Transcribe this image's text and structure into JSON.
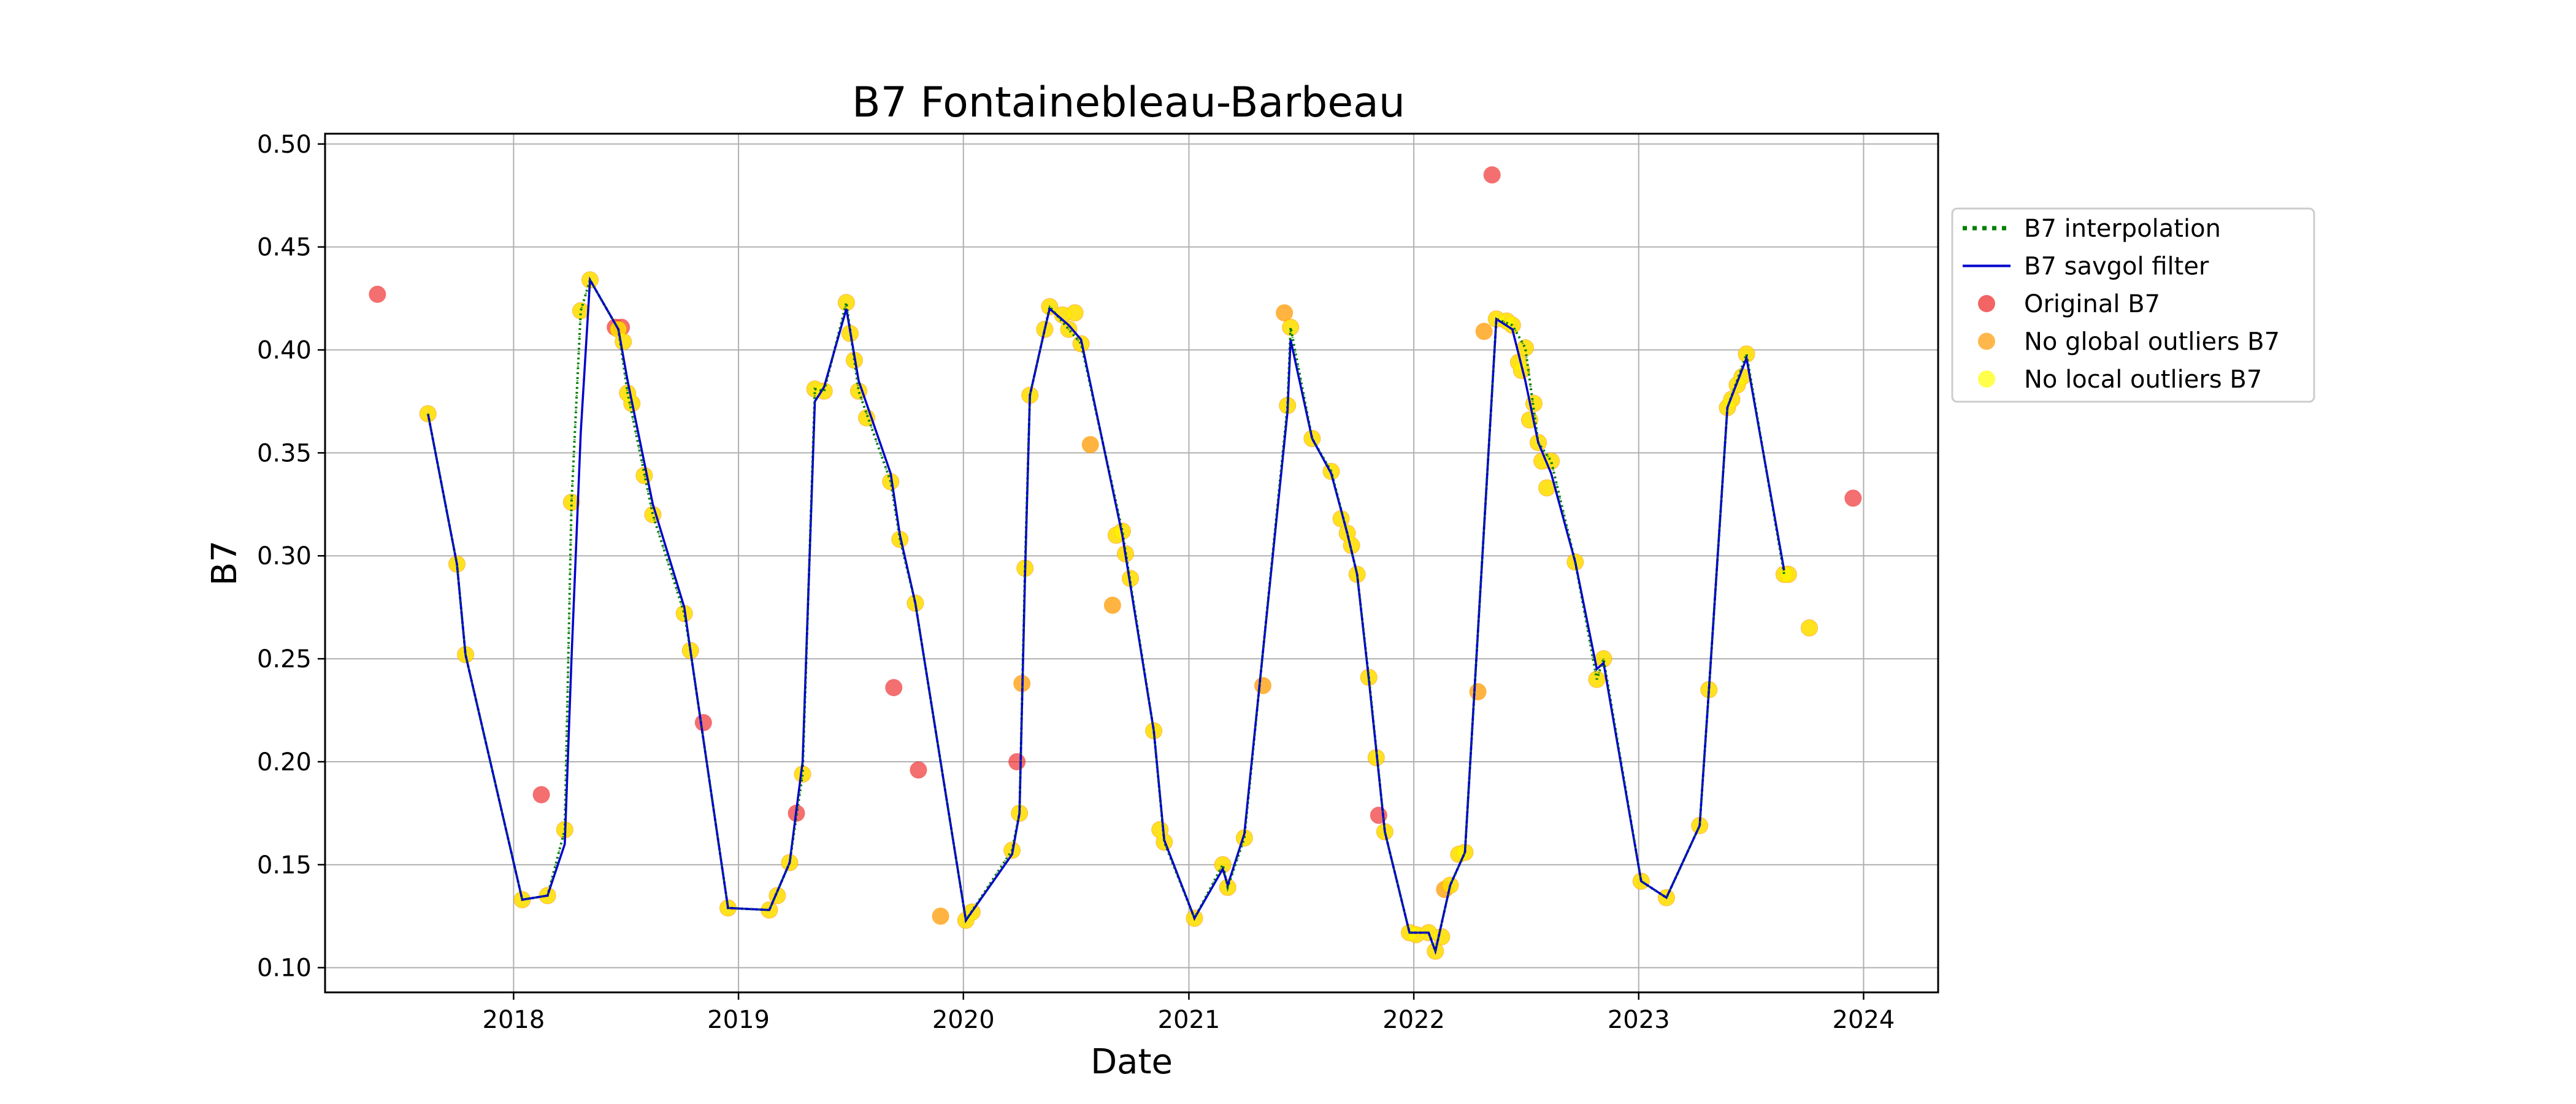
{
  "chart_data": {
    "type": "scatter",
    "title": "B7 Fontainebleau-Barbeau",
    "xlabel": "Date",
    "ylabel": "B7",
    "x_axis_type": "date",
    "xlim": [
      "2017-03-01",
      "2024-05-01"
    ],
    "ylim": [
      0.088,
      0.505
    ],
    "x_ticks": [
      "2018",
      "2019",
      "2020",
      "2021",
      "2022",
      "2023",
      "2024"
    ],
    "y_ticks": [
      "0.10",
      "0.15",
      "0.20",
      "0.25",
      "0.30",
      "0.35",
      "0.40",
      "0.45",
      "0.50"
    ],
    "grid": true,
    "legend_position": "outside-right-top",
    "colors": {
      "interpolation": "#008000",
      "savgol": "#0000cc",
      "original": "#ee2222",
      "no_global": "#ff9900",
      "no_local": "#ffff00"
    },
    "legend": [
      {
        "label": "B7 interpolation",
        "kind": "dotted-line",
        "color": "#008000"
      },
      {
        "label": "B7 savgol filter",
        "kind": "line",
        "color": "#0000cc"
      },
      {
        "label": "Original B7",
        "kind": "marker",
        "color": "#ee2222"
      },
      {
        "label": "No global outliers B7",
        "kind": "marker",
        "color": "#ff9900"
      },
      {
        "label": "No local outliers B7",
        "kind": "marker",
        "color": "#ffff00"
      }
    ],
    "series": [
      {
        "name": "No local outliers B7",
        "points": [
          [
            "2017-08-15",
            0.369
          ],
          [
            "2017-10-01",
            0.296
          ],
          [
            "2017-10-15",
            0.252
          ],
          [
            "2018-01-15",
            0.133
          ],
          [
            "2018-02-25",
            0.135
          ],
          [
            "2018-03-25",
            0.167
          ],
          [
            "2018-04-05",
            0.326
          ],
          [
            "2018-04-20",
            0.419
          ],
          [
            "2018-05-05",
            0.434
          ],
          [
            "2018-06-20",
            0.41
          ],
          [
            "2018-06-28",
            0.404
          ],
          [
            "2018-07-05",
            0.379
          ],
          [
            "2018-07-12",
            0.374
          ],
          [
            "2018-08-01",
            0.339
          ],
          [
            "2018-08-15",
            0.32
          ],
          [
            "2018-10-05",
            0.272
          ],
          [
            "2018-10-15",
            0.254
          ],
          [
            "2018-12-15",
            0.129
          ],
          [
            "2019-02-20",
            0.128
          ],
          [
            "2019-03-05",
            0.135
          ],
          [
            "2019-03-25",
            0.151
          ],
          [
            "2019-04-15",
            0.194
          ],
          [
            "2019-05-05",
            0.381
          ],
          [
            "2019-05-20",
            0.38
          ],
          [
            "2019-06-25",
            0.423
          ],
          [
            "2019-07-01",
            0.408
          ],
          [
            "2019-07-08",
            0.395
          ],
          [
            "2019-07-15",
            0.38
          ],
          [
            "2019-07-28",
            0.367
          ],
          [
            "2019-09-05",
            0.336
          ],
          [
            "2019-09-20",
            0.308
          ],
          [
            "2019-10-15",
            0.277
          ],
          [
            "2020-01-05",
            0.123
          ],
          [
            "2020-01-15",
            0.127
          ],
          [
            "2020-03-20",
            0.157
          ],
          [
            "2020-04-01",
            0.175
          ],
          [
            "2020-04-10",
            0.294
          ],
          [
            "2020-04-18",
            0.378
          ],
          [
            "2020-05-12",
            0.41
          ],
          [
            "2020-05-20",
            0.421
          ],
          [
            "2020-06-10",
            0.417
          ],
          [
            "2020-06-20",
            0.41
          ],
          [
            "2020-06-30",
            0.418
          ],
          [
            "2020-07-10",
            0.403
          ],
          [
            "2020-09-05",
            0.31
          ],
          [
            "2020-09-15",
            0.312
          ],
          [
            "2020-09-20",
            0.301
          ],
          [
            "2020-09-28",
            0.289
          ],
          [
            "2020-11-05",
            0.215
          ],
          [
            "2020-11-15",
            0.167
          ],
          [
            "2020-11-22",
            0.161
          ],
          [
            "2021-01-10",
            0.124
          ],
          [
            "2021-02-25",
            0.15
          ],
          [
            "2021-03-05",
            0.139
          ],
          [
            "2021-04-01",
            0.163
          ],
          [
            "2021-06-10",
            0.373
          ],
          [
            "2021-06-15",
            0.411
          ],
          [
            "2021-07-20",
            0.357
          ],
          [
            "2021-08-20",
            0.341
          ],
          [
            "2021-09-05",
            0.318
          ],
          [
            "2021-09-15",
            0.311
          ],
          [
            "2021-09-22",
            0.305
          ],
          [
            "2021-10-01",
            0.291
          ],
          [
            "2021-10-20",
            0.241
          ],
          [
            "2021-11-01",
            0.202
          ],
          [
            "2021-11-15",
            0.166
          ],
          [
            "2021-12-25",
            0.117
          ],
          [
            "2022-01-05",
            0.116
          ],
          [
            "2022-01-25",
            0.117
          ],
          [
            "2022-02-05",
            0.108
          ],
          [
            "2022-02-15",
            0.115
          ],
          [
            "2022-03-01",
            0.14
          ],
          [
            "2022-03-15",
            0.155
          ],
          [
            "2022-03-25",
            0.156
          ],
          [
            "2022-05-15",
            0.415
          ],
          [
            "2022-06-01",
            0.414
          ],
          [
            "2022-06-10",
            0.412
          ],
          [
            "2022-06-20",
            0.394
          ],
          [
            "2022-06-25",
            0.39
          ],
          [
            "2022-07-01",
            0.401
          ],
          [
            "2022-07-08",
            0.366
          ],
          [
            "2022-07-15",
            0.374
          ],
          [
            "2022-07-22",
            0.355
          ],
          [
            "2022-07-28",
            0.346
          ],
          [
            "2022-08-05",
            0.333
          ],
          [
            "2022-08-12",
            0.346
          ],
          [
            "2022-09-20",
            0.297
          ],
          [
            "2022-10-25",
            0.24
          ],
          [
            "2022-11-05",
            0.25
          ],
          [
            "2023-01-05",
            0.142
          ],
          [
            "2023-02-15",
            0.134
          ],
          [
            "2023-04-10",
            0.169
          ],
          [
            "2023-04-25",
            0.235
          ],
          [
            "2023-05-25",
            0.372
          ],
          [
            "2023-06-01",
            0.376
          ],
          [
            "2023-06-10",
            0.383
          ],
          [
            "2023-06-18",
            0.387
          ],
          [
            "2023-06-25",
            0.398
          ],
          [
            "2023-08-25",
            0.291
          ],
          [
            "2023-09-01",
            0.291
          ],
          [
            "2023-10-05",
            0.265
          ]
        ]
      },
      {
        "name": "No global outliers B7",
        "points": [
          [
            "2019-11-25",
            0.125
          ],
          [
            "2020-04-05",
            0.238
          ],
          [
            "2020-07-25",
            0.354
          ],
          [
            "2020-08-30",
            0.276
          ],
          [
            "2021-05-01",
            0.237
          ],
          [
            "2021-06-05",
            0.418
          ],
          [
            "2022-04-15",
            0.234
          ],
          [
            "2022-04-25",
            0.409
          ],
          [
            "2022-02-20",
            0.138
          ]
        ]
      },
      {
        "name": "Original B7",
        "points": [
          [
            "2017-05-25",
            0.427
          ],
          [
            "2018-02-15",
            0.184
          ],
          [
            "2018-06-15",
            0.411
          ],
          [
            "2018-06-25",
            0.411
          ],
          [
            "2018-11-05",
            0.219
          ],
          [
            "2019-04-05",
            0.175
          ],
          [
            "2019-09-10",
            0.236
          ],
          [
            "2019-10-20",
            0.196
          ],
          [
            "2020-03-28",
            0.2
          ],
          [
            "2021-11-05",
            0.174
          ],
          [
            "2022-05-08",
            0.485
          ],
          [
            "2023-12-15",
            0.328
          ]
        ]
      },
      {
        "name": "B7 savgol filter",
        "points": [
          [
            "2017-08-15",
            0.369
          ],
          [
            "2017-10-01",
            0.296
          ],
          [
            "2017-10-15",
            0.252
          ],
          [
            "2018-01-15",
            0.133
          ],
          [
            "2018-02-25",
            0.135
          ],
          [
            "2018-03-25",
            0.16
          ],
          [
            "2018-04-05",
            0.25
          ],
          [
            "2018-04-20",
            0.36
          ],
          [
            "2018-05-05",
            0.434
          ],
          [
            "2018-06-20",
            0.41
          ],
          [
            "2018-07-05",
            0.385
          ],
          [
            "2018-08-15",
            0.325
          ],
          [
            "2018-10-05",
            0.275
          ],
          [
            "2018-10-15",
            0.254
          ],
          [
            "2018-12-15",
            0.129
          ],
          [
            "2019-02-20",
            0.128
          ],
          [
            "2019-03-25",
            0.151
          ],
          [
            "2019-04-15",
            0.2
          ],
          [
            "2019-05-05",
            0.375
          ],
          [
            "2019-05-20",
            0.382
          ],
          [
            "2019-06-25",
            0.42
          ],
          [
            "2019-07-15",
            0.385
          ],
          [
            "2019-09-05",
            0.34
          ],
          [
            "2019-09-20",
            0.31
          ],
          [
            "2019-10-15",
            0.277
          ],
          [
            "2020-01-05",
            0.123
          ],
          [
            "2020-03-20",
            0.155
          ],
          [
            "2020-04-01",
            0.175
          ],
          [
            "2020-04-10",
            0.29
          ],
          [
            "2020-04-18",
            0.378
          ],
          [
            "2020-05-12",
            0.41
          ],
          [
            "2020-05-20",
            0.42
          ],
          [
            "2020-06-20",
            0.412
          ],
          [
            "2020-07-10",
            0.405
          ],
          [
            "2020-09-15",
            0.31
          ],
          [
            "2020-11-05",
            0.215
          ],
          [
            "2020-11-22",
            0.162
          ],
          [
            "2021-01-10",
            0.124
          ],
          [
            "2021-02-25",
            0.148
          ],
          [
            "2021-03-05",
            0.14
          ],
          [
            "2021-04-01",
            0.165
          ],
          [
            "2021-06-10",
            0.37
          ],
          [
            "2021-06-15",
            0.405
          ],
          [
            "2021-07-20",
            0.357
          ],
          [
            "2021-08-20",
            0.34
          ],
          [
            "2021-09-15",
            0.311
          ],
          [
            "2021-10-01",
            0.291
          ],
          [
            "2021-10-20",
            0.24
          ],
          [
            "2021-11-15",
            0.166
          ],
          [
            "2021-12-25",
            0.117
          ],
          [
            "2022-01-25",
            0.117
          ],
          [
            "2022-02-05",
            0.108
          ],
          [
            "2022-03-01",
            0.14
          ],
          [
            "2022-03-25",
            0.156
          ],
          [
            "2022-05-15",
            0.415
          ],
          [
            "2022-06-10",
            0.41
          ],
          [
            "2022-07-01",
            0.385
          ],
          [
            "2022-07-22",
            0.355
          ],
          [
            "2022-08-12",
            0.34
          ],
          [
            "2022-09-20",
            0.297
          ],
          [
            "2022-10-25",
            0.245
          ],
          [
            "2022-11-05",
            0.248
          ],
          [
            "2023-01-05",
            0.142
          ],
          [
            "2023-02-15",
            0.134
          ],
          [
            "2023-04-10",
            0.169
          ],
          [
            "2023-04-25",
            0.235
          ],
          [
            "2023-05-25",
            0.372
          ],
          [
            "2023-06-25",
            0.396
          ],
          [
            "2023-08-25",
            0.293
          ]
        ]
      },
      {
        "name": "B7 interpolation",
        "points": [
          [
            "2017-08-15",
            0.369
          ],
          [
            "2017-10-01",
            0.296
          ],
          [
            "2017-10-15",
            0.252
          ],
          [
            "2018-01-15",
            0.133
          ],
          [
            "2018-02-25",
            0.135
          ],
          [
            "2018-03-25",
            0.167
          ],
          [
            "2018-04-05",
            0.326
          ],
          [
            "2018-04-20",
            0.419
          ],
          [
            "2018-05-05",
            0.434
          ],
          [
            "2018-06-20",
            0.41
          ],
          [
            "2018-07-05",
            0.379
          ],
          [
            "2018-08-15",
            0.32
          ],
          [
            "2018-10-05",
            0.272
          ],
          [
            "2018-10-15",
            0.254
          ],
          [
            "2018-12-15",
            0.129
          ],
          [
            "2019-02-20",
            0.128
          ],
          [
            "2019-03-25",
            0.151
          ],
          [
            "2019-04-15",
            0.194
          ],
          [
            "2019-05-05",
            0.381
          ],
          [
            "2019-05-20",
            0.38
          ],
          [
            "2019-06-25",
            0.423
          ],
          [
            "2019-07-15",
            0.38
          ],
          [
            "2019-09-05",
            0.336
          ],
          [
            "2019-09-20",
            0.308
          ],
          [
            "2019-10-15",
            0.277
          ],
          [
            "2020-01-05",
            0.123
          ],
          [
            "2020-03-20",
            0.157
          ],
          [
            "2020-04-01",
            0.175
          ],
          [
            "2020-04-10",
            0.294
          ],
          [
            "2020-04-18",
            0.378
          ],
          [
            "2020-05-12",
            0.41
          ],
          [
            "2020-05-20",
            0.421
          ],
          [
            "2020-06-20",
            0.41
          ],
          [
            "2020-07-10",
            0.403
          ],
          [
            "2020-09-15",
            0.312
          ],
          [
            "2020-11-05",
            0.215
          ],
          [
            "2020-11-22",
            0.161
          ],
          [
            "2021-01-10",
            0.124
          ],
          [
            "2021-02-25",
            0.15
          ],
          [
            "2021-03-05",
            0.139
          ],
          [
            "2021-04-01",
            0.163
          ],
          [
            "2021-06-10",
            0.373
          ],
          [
            "2021-06-15",
            0.411
          ],
          [
            "2021-07-20",
            0.357
          ],
          [
            "2021-08-20",
            0.341
          ],
          [
            "2021-09-15",
            0.311
          ],
          [
            "2021-10-01",
            0.291
          ],
          [
            "2021-10-20",
            0.241
          ],
          [
            "2021-11-15",
            0.166
          ],
          [
            "2021-12-25",
            0.117
          ],
          [
            "2022-01-25",
            0.117
          ],
          [
            "2022-02-05",
            0.108
          ],
          [
            "2022-03-01",
            0.14
          ],
          [
            "2022-03-25",
            0.156
          ],
          [
            "2022-05-15",
            0.415
          ],
          [
            "2022-06-10",
            0.412
          ],
          [
            "2022-07-01",
            0.401
          ],
          [
            "2022-07-22",
            0.355
          ],
          [
            "2022-08-12",
            0.346
          ],
          [
            "2022-09-20",
            0.297
          ],
          [
            "2022-10-25",
            0.24
          ],
          [
            "2022-11-05",
            0.25
          ],
          [
            "2023-01-05",
            0.142
          ],
          [
            "2023-02-15",
            0.134
          ],
          [
            "2023-04-10",
            0.169
          ],
          [
            "2023-04-25",
            0.235
          ],
          [
            "2023-05-25",
            0.372
          ],
          [
            "2023-06-25",
            0.398
          ],
          [
            "2023-08-25",
            0.291
          ]
        ]
      }
    ]
  }
}
